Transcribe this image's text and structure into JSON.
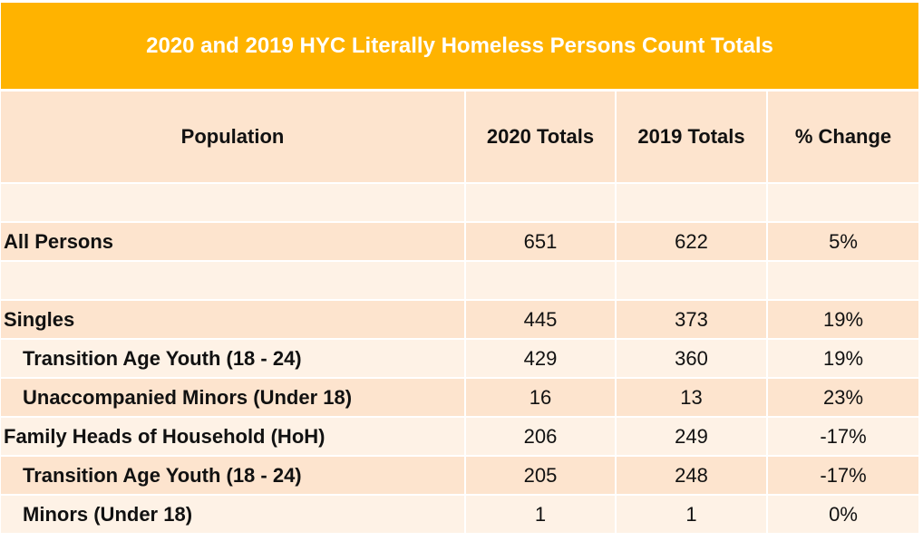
{
  "title": "2020 and 2019 HYC Literally Homeless Persons Count Totals",
  "colors": {
    "title_bg": "#FFB300",
    "header_bg": "#FDE4CE",
    "row_light": "#FEF2E6",
    "row_dark": "#FDE4CE"
  },
  "columns": [
    "Population",
    "2020 Totals",
    "2019 Totals",
    "% Change"
  ],
  "rows": [
    {
      "population": "",
      "y2020": "",
      "y2019": "",
      "change": ""
    },
    {
      "population": "All Persons",
      "y2020": "651",
      "y2019": "622",
      "change": "5%"
    },
    {
      "population": "",
      "y2020": "",
      "y2019": "",
      "change": ""
    },
    {
      "population": "Singles",
      "y2020": "445",
      "y2019": "373",
      "change": "19%"
    },
    {
      "population": "Transition Age Youth (18 - 24)",
      "y2020": "429",
      "y2019": "360",
      "change": "19%",
      "indent": true
    },
    {
      "population": "Unaccompanied Minors (Under 18)",
      "y2020": "16",
      "y2019": "13",
      "change": "23%",
      "indent": true
    },
    {
      "population": "Family Heads of Household (HoH)",
      "y2020": "206",
      "y2019": "249",
      "change": "-17%"
    },
    {
      "population": "Transition Age Youth (18 - 24)",
      "y2020": "205",
      "y2019": "248",
      "change": "-17%",
      "indent": true
    },
    {
      "population": "Minors (Under 18)",
      "y2020": "1",
      "y2019": "1",
      "change": "0%",
      "indent": true
    }
  ]
}
